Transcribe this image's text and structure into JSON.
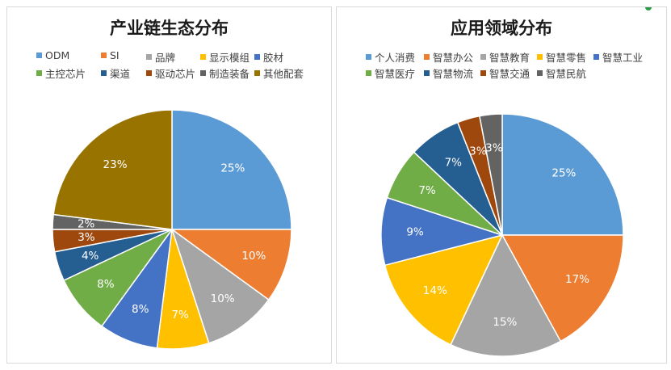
{
  "chart_data": [
    {
      "type": "pie",
      "title": "产业链生态分布",
      "labels": [
        "ODM",
        "SI",
        "品牌",
        "显示模组",
        "胶材",
        "主控芯片",
        "渠道",
        "驱动芯片",
        "制造装备",
        "其他配套"
      ],
      "values": [
        25,
        10,
        10,
        7,
        8,
        8,
        4,
        3,
        2,
        23
      ],
      "value_labels": [
        "25%",
        "10%",
        "10%",
        "7%",
        "8%",
        "8%",
        "4%",
        "3%",
        "2%",
        "23%"
      ],
      "colors": [
        "#5b9bd5",
        "#ed7d31",
        "#a5a5a5",
        "#ffc000",
        "#4472c4",
        "#70ad47",
        "#255e91",
        "#9e480e",
        "#636363",
        "#997300"
      ],
      "legend_position": "top"
    },
    {
      "type": "pie",
      "title": "应用领域分布",
      "labels": [
        "个人消费",
        "智慧办公",
        "智慧教育",
        "智慧零售",
        "智慧工业",
        "智慧医疗",
        "智慧物流",
        "智慧交通",
        "智慧民航"
      ],
      "values": [
        25,
        17,
        15,
        14,
        9,
        7,
        7,
        3,
        3
      ],
      "value_labels": [
        "25%",
        "17%",
        "15%",
        "14%",
        "9%",
        "7%",
        "7%",
        "3%",
        "3%"
      ],
      "colors": [
        "#5b9bd5",
        "#ed7d31",
        "#a5a5a5",
        "#ffc000",
        "#4472c4",
        "#70ad47",
        "#255e91",
        "#9e480e",
        "#636363"
      ],
      "legend_position": "top"
    }
  ]
}
